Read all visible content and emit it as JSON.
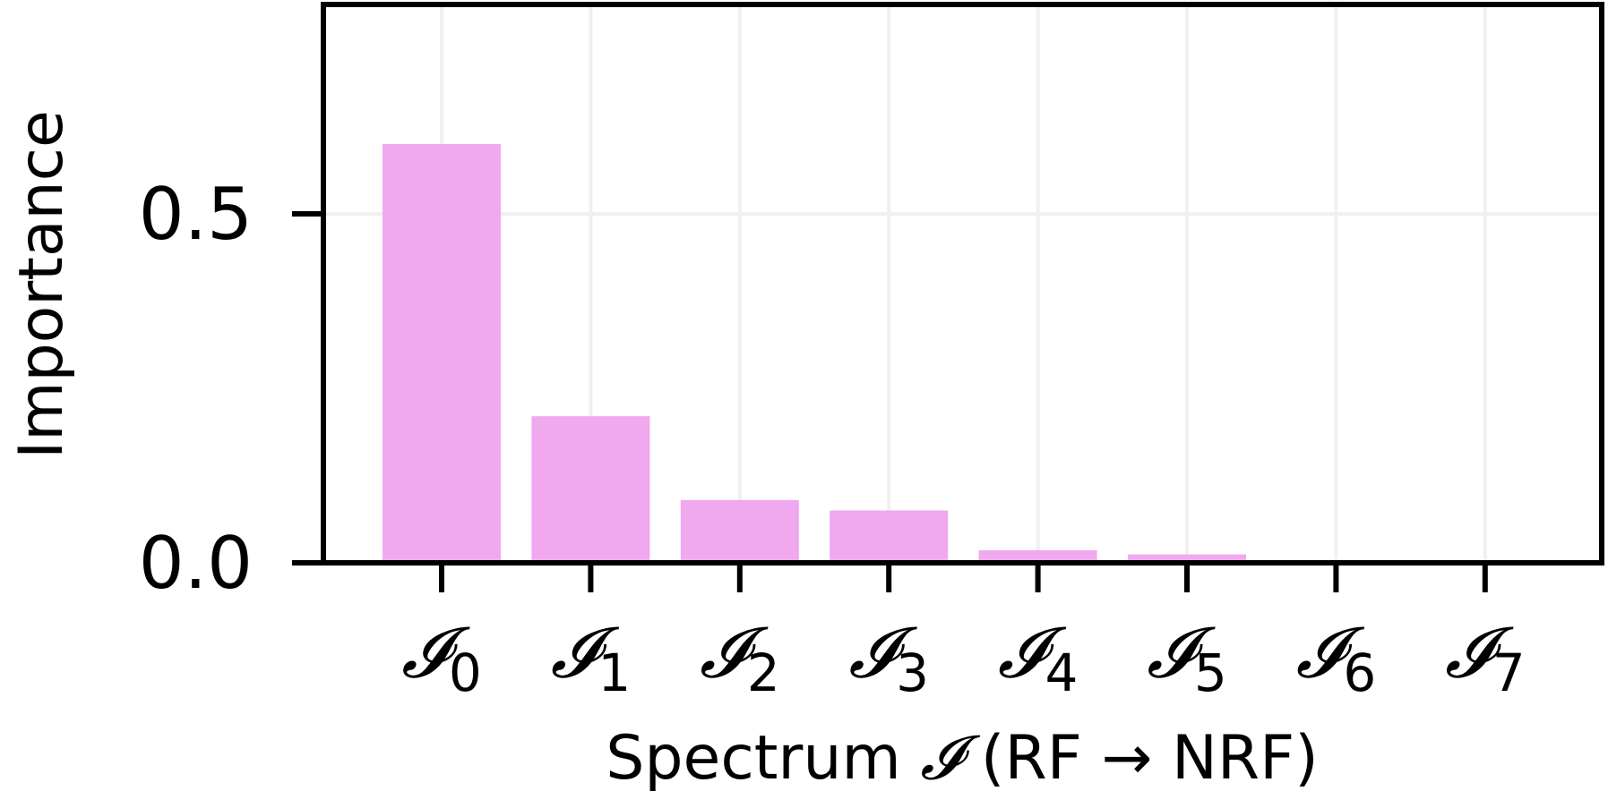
{
  "chart_data": {
    "type": "bar",
    "categories": [
      "𝓘0",
      "𝓘1",
      "𝓘2",
      "𝓘3",
      "𝓘4",
      "𝓘5",
      "𝓘6",
      "𝓘7"
    ],
    "category_symbol": "𝓘",
    "category_subscripts": [
      "0",
      "1",
      "2",
      "3",
      "4",
      "5",
      "6",
      "7"
    ],
    "values": [
      0.6,
      0.21,
      0.09,
      0.075,
      0.018,
      0.012,
      0.0,
      0.0
    ],
    "ylabel": "Importance",
    "xlabel": {
      "prefix": "Spectrum ",
      "symbol": "𝓘",
      "suffix": " (RF → NRF)"
    },
    "ylim": [
      0.0,
      0.8
    ],
    "yticks": [
      0.0,
      0.5
    ],
    "ytick_labels": [
      "0.0",
      "0.5"
    ],
    "grid": true,
    "bar_color": "#f0a8ef",
    "grid_color": "#f0f0f0",
    "axis_color": "#000000"
  }
}
